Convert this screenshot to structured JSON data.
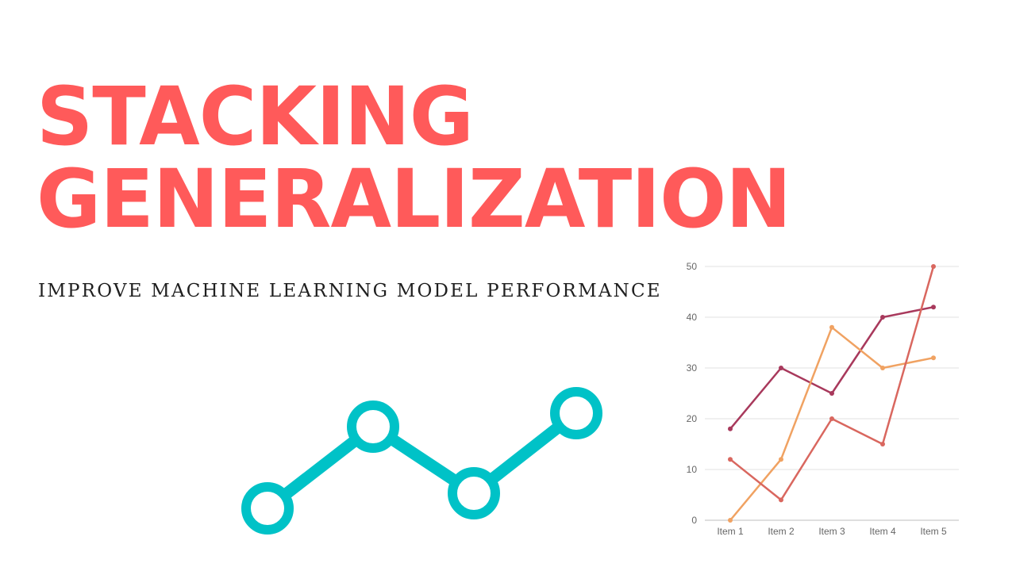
{
  "header": {
    "title_line1": "STACKING",
    "title_line2": "GENERALIZATION",
    "subtitle": "IMPROVE MACHINE LEARNING MODEL PERFORMANCE"
  },
  "colors": {
    "title": "#ff5a5a",
    "decoration": "#00c2c7"
  },
  "decoration": {
    "icon": "line-graph-icon"
  },
  "chart_data": {
    "type": "line",
    "categories": [
      "Item 1",
      "Item 2",
      "Item 3",
      "Item 4",
      "Item 5"
    ],
    "ylim": [
      0,
      50
    ],
    "yticks": [
      0,
      10,
      20,
      30,
      40,
      50
    ],
    "grid": true,
    "series": [
      {
        "color": "#a8395c",
        "values": [
          18,
          30,
          25,
          40,
          42
        ]
      },
      {
        "color": "#f0a262",
        "values": [
          0,
          12,
          38,
          30,
          32
        ]
      },
      {
        "color": "#d9675f",
        "values": [
          12,
          4,
          20,
          15,
          50
        ]
      }
    ]
  }
}
